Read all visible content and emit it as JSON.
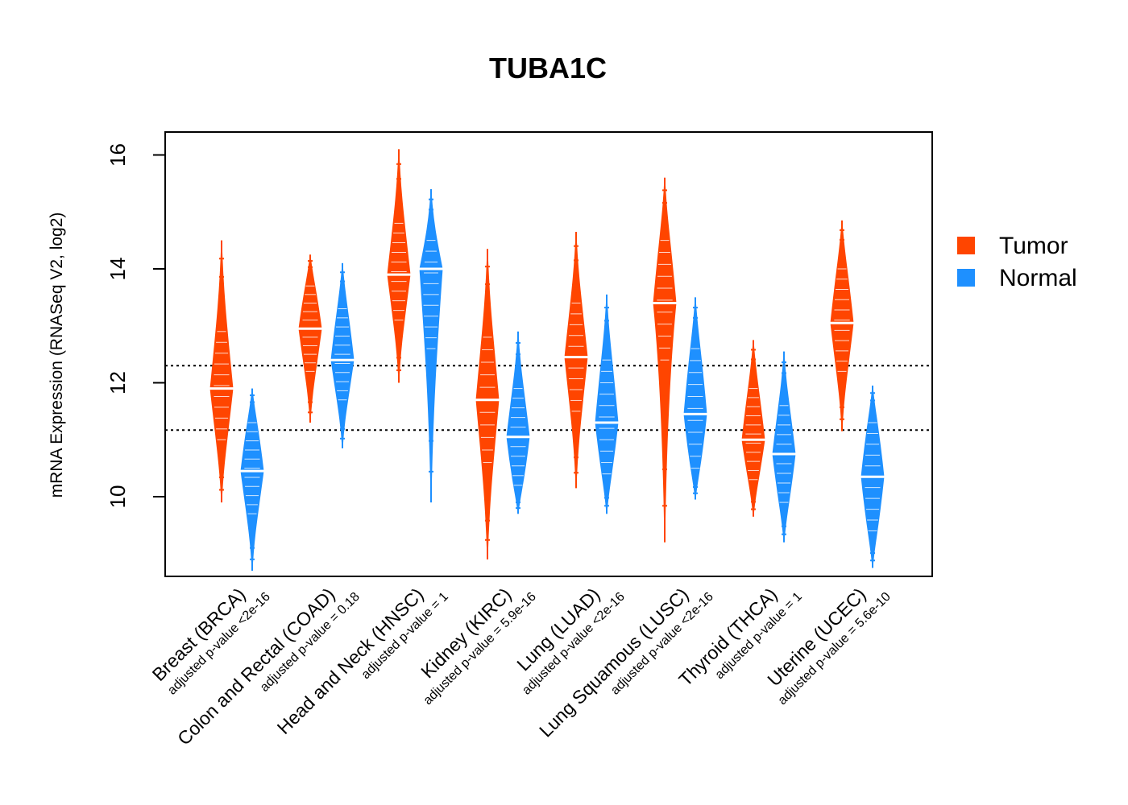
{
  "chart_data": {
    "type": "violin",
    "title": "TUBA1C",
    "ylabel": "mRNA Expression (RNASeq V2, log2)",
    "ylim": [
      8.7,
      16.5
    ],
    "yticks": [
      "10",
      "12",
      "14",
      "16"
    ],
    "reference_lines": [
      12.3,
      11.17
    ],
    "legend": {
      "position": "right",
      "items": [
        {
          "label": "Tumor",
          "color": "#FF4500"
        },
        {
          "label": "Normal",
          "color": "#1E90FF"
        }
      ]
    },
    "categories": [
      {
        "label": "Breast (BRCA)",
        "pvalue": "adjusted p-value <2e-16"
      },
      {
        "label": "Colon and Rectal (COAD)",
        "pvalue": "adjusted p-value = 0.18"
      },
      {
        "label": "Head and Neck (HNSC)",
        "pvalue": "adjusted p-value = 1"
      },
      {
        "label": "Kidney (KIRC)",
        "pvalue": "adjusted p-value = 5.9e-16"
      },
      {
        "label": "Lung (LUAD)",
        "pvalue": "adjusted p-value <2e-16"
      },
      {
        "label": "Lung Squamous (LUSC)",
        "pvalue": "adjusted p-value <2e-16"
      },
      {
        "label": "Thyroid (THCA)",
        "pvalue": "adjusted p-value = 1"
      },
      {
        "label": "Uterine (UCEC)",
        "pvalue": "adjusted p-value = 5.6e-10"
      }
    ],
    "series": [
      {
        "name": "Tumor",
        "color": "#FF4500",
        "violins": [
          {
            "min": 9.9,
            "q_low": 11.0,
            "median": 11.9,
            "q_high": 12.9,
            "max": 14.5
          },
          {
            "min": 11.3,
            "q_low": 12.2,
            "median": 12.95,
            "q_high": 13.7,
            "max": 14.25
          },
          {
            "min": 12.0,
            "q_low": 13.1,
            "median": 13.9,
            "q_high": 14.8,
            "max": 16.1
          },
          {
            "min": 8.9,
            "q_low": 10.6,
            "median": 11.7,
            "q_high": 12.8,
            "max": 14.35
          },
          {
            "min": 10.15,
            "q_low": 11.5,
            "median": 12.45,
            "q_high": 13.4,
            "max": 14.65
          },
          {
            "min": 9.2,
            "q_low": 12.4,
            "median": 13.4,
            "q_high": 14.5,
            "max": 15.6
          },
          {
            "min": 9.65,
            "q_low": 10.3,
            "median": 11.0,
            "q_high": 11.9,
            "max": 12.75
          },
          {
            "min": 11.15,
            "q_low": 12.2,
            "median": 13.05,
            "q_high": 14.0,
            "max": 14.85
          }
        ]
      },
      {
        "name": "Normal",
        "color": "#1E90FF",
        "violins": [
          {
            "min": 8.7,
            "q_low": 9.7,
            "median": 10.45,
            "q_high": 11.3,
            "max": 11.9
          },
          {
            "min": 10.85,
            "q_low": 11.7,
            "median": 12.4,
            "q_high": 13.3,
            "max": 14.1
          },
          {
            "min": 9.9,
            "q_low": 12.6,
            "median": 14.0,
            "q_high": 14.5,
            "max": 15.4
          },
          {
            "min": 9.7,
            "q_low": 10.2,
            "median": 11.05,
            "q_high": 11.9,
            "max": 12.9
          },
          {
            "min": 9.7,
            "q_low": 10.4,
            "median": 11.3,
            "q_high": 12.4,
            "max": 13.55
          },
          {
            "min": 9.95,
            "q_low": 10.5,
            "median": 11.45,
            "q_high": 12.6,
            "max": 13.5
          },
          {
            "min": 9.2,
            "q_low": 9.9,
            "median": 10.75,
            "q_high": 11.6,
            "max": 12.55
          },
          {
            "min": 8.75,
            "q_low": 9.4,
            "median": 10.35,
            "q_high": 11.3,
            "max": 11.95
          }
        ]
      }
    ]
  }
}
